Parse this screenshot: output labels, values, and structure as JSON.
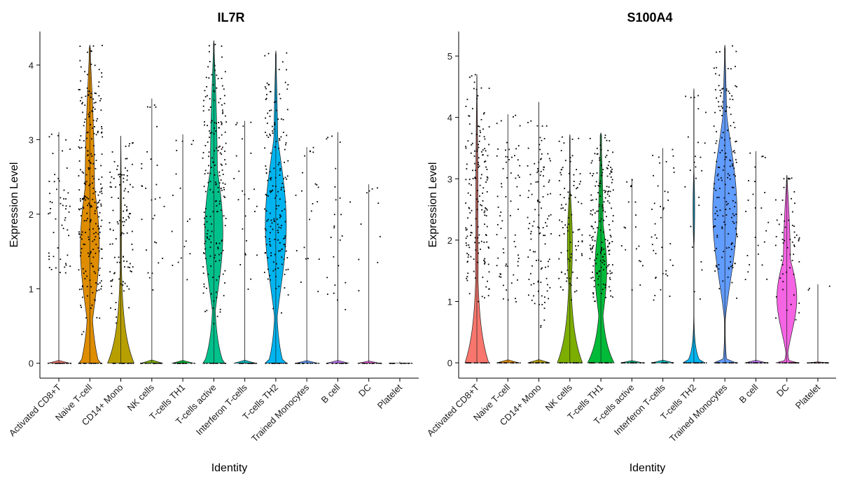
{
  "chart_data": [
    {
      "type": "violin",
      "title": "IL7R",
      "xlabel": "Identity",
      "ylabel": "Expression Level",
      "ylim": [
        -0.2,
        4.45
      ],
      "yticks": [
        0,
        1,
        2,
        3,
        4
      ],
      "categories": [
        "Activated CD8+T",
        "Naive T-cell",
        "CD14+ Mono",
        "NK cells",
        "T-cells TH1",
        "T-cells active",
        "Interferon T-cells",
        "T-cells TH2",
        "Trained Monocytes",
        "B cell",
        "DC",
        "Platelet"
      ],
      "series": [
        {
          "category": "Activated CD8+T",
          "color": "#F8766D",
          "max": 3.1,
          "dot_range": [
            0.95,
            3.1
          ],
          "dots": 55
        },
        {
          "category": "Naive T-cell",
          "color": "#DE8C00",
          "max": 4.27,
          "dot_range": [
            0.3,
            4.27
          ],
          "dots": 260
        },
        {
          "category": "CD14+ Mono",
          "color": "#B79F00",
          "max": 3.05,
          "dot_range": [
            0.45,
            3.05
          ],
          "dots": 110
        },
        {
          "category": "NK cells",
          "color": "#7CAE00",
          "max": 3.55,
          "dot_range": [
            0.9,
            3.55
          ],
          "dots": 30
        },
        {
          "category": "T-cells TH1",
          "color": "#00BA38",
          "max": 3.07,
          "dot_range": [
            0.95,
            3.07
          ],
          "dots": 18
        },
        {
          "category": "T-cells active",
          "color": "#00C08B",
          "max": 4.33,
          "dot_range": [
            0.35,
            4.33
          ],
          "dots": 200
        },
        {
          "category": "Interferon T-cells",
          "color": "#00BFC4",
          "max": 3.25,
          "dot_range": [
            0.8,
            3.25
          ],
          "dots": 25
        },
        {
          "category": "T-cells TH2",
          "color": "#00B4F0",
          "max": 4.19,
          "dot_range": [
            0.55,
            4.19
          ],
          "dots": 180
        },
        {
          "category": "Trained Monocytes",
          "color": "#619CFF",
          "max": 2.9,
          "dot_range": [
            0.6,
            2.9
          ],
          "dots": 22
        },
        {
          "category": "B cell",
          "color": "#C77CFF",
          "max": 3.1,
          "dot_range": [
            0.5,
            3.1
          ],
          "dots": 25
        },
        {
          "category": "DC",
          "color": "#F564E3",
          "max": 2.4,
          "dot_range": [
            0.65,
            2.4
          ],
          "dots": 10
        },
        {
          "category": "Platelet",
          "color": "#FF64B0",
          "max": 0.02,
          "dot_range": [
            0,
            0
          ],
          "dots": 0
        }
      ]
    },
    {
      "type": "violin",
      "title": "S100A4",
      "xlabel": "Identity",
      "ylabel": "Expression Level",
      "ylim": [
        -0.25,
        5.4
      ],
      "yticks": [
        0,
        1,
        2,
        3,
        4,
        5
      ],
      "categories": [
        "Activated CD8+T",
        "Naive T-cell",
        "CD14+ Mono",
        "NK cells",
        "T-cells TH1",
        "T-cells active",
        "Interferon T-cells",
        "T-cells TH2",
        "Trained Monocytes",
        "B cell",
        "DC",
        "Platelet"
      ],
      "series": [
        {
          "category": "Activated CD8+T",
          "color": "#F8766D",
          "max": 4.7,
          "dot_range": [
            0.7,
            4.7
          ],
          "dots": 170
        },
        {
          "category": "Naive T-cell",
          "color": "#DE8C00",
          "max": 4.05,
          "dot_range": [
            0.85,
            4.05
          ],
          "dots": 70
        },
        {
          "category": "CD14+ Mono",
          "color": "#B79F00",
          "max": 4.25,
          "dot_range": [
            0.5,
            4.0
          ],
          "dots": 110
        },
        {
          "category": "NK cells",
          "color": "#7CAE00",
          "max": 3.72,
          "dot_range": [
            0.9,
            3.72
          ],
          "dots": 90
        },
        {
          "category": "T-cells TH1",
          "color": "#00BA38",
          "max": 3.75,
          "dot_range": [
            0.7,
            3.75
          ],
          "dots": 190
        },
        {
          "category": "T-cells active",
          "color": "#00C08B",
          "max": 3.0,
          "dot_range": [
            1.0,
            3.0
          ],
          "dots": 20
        },
        {
          "category": "Interferon T-cells",
          "color": "#00BFC4",
          "max": 3.5,
          "dot_range": [
            0.9,
            3.5
          ],
          "dots": 40
        },
        {
          "category": "T-cells TH2",
          "color": "#00B4F0",
          "max": 4.47,
          "dot_range": [
            0.9,
            4.47
          ],
          "dots": 25
        },
        {
          "category": "Trained Monocytes",
          "color": "#619CFF",
          "max": 5.18,
          "dot_range": [
            0.9,
            5.18
          ],
          "dots": 170
        },
        {
          "category": "B cell",
          "color": "#C77CFF",
          "max": 3.45,
          "dot_range": [
            0.85,
            3.45
          ],
          "dots": 25
        },
        {
          "category": "DC",
          "color": "#F564E3",
          "max": 3.06,
          "dot_range": [
            0.65,
            3.06
          ],
          "dots": 60
        },
        {
          "category": "Platelet",
          "color": "#FF64B0",
          "max": 1.28,
          "dot_range": [
            0.9,
            1.28
          ],
          "dots": 3
        }
      ]
    }
  ]
}
